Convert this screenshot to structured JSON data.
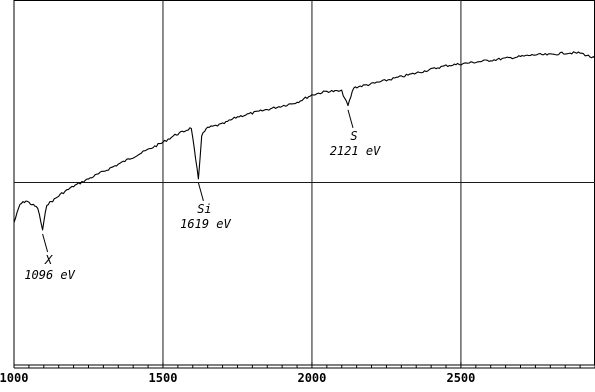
{
  "chart_data": {
    "type": "line",
    "title": "",
    "xlabel": "",
    "ylabel": "",
    "xlim": [
      1000,
      2950
    ],
    "ylim": [
      0,
      100
    ],
    "grid": true,
    "x_ticks": [
      1000,
      1500,
      2000,
      2500
    ],
    "x_tick_labels": [
      "1000",
      "1500",
      "2000",
      "2500"
    ],
    "series": [
      {
        "x": [
          1000,
          1020,
          1040,
          1060,
          1080,
          1096,
          1110,
          1130,
          1160,
          1200,
          1250,
          1300,
          1350,
          1400,
          1450,
          1500,
          1540,
          1570,
          1595,
          1610,
          1619,
          1630,
          1650,
          1700,
          1750,
          1800,
          1850,
          1900,
          1950,
          2000,
          2050,
          2100,
          2121,
          2140,
          2200,
          2250,
          2300,
          2350,
          2400,
          2450,
          2500,
          2550,
          2600,
          2650,
          2700,
          2750,
          2800,
          2850,
          2900,
          2950
        ],
        "y": [
          39,
          44,
          45,
          44,
          43,
          37,
          44,
          45,
          47,
          49,
          51,
          53,
          55,
          57,
          59,
          61,
          63,
          64,
          65,
          56,
          51,
          63,
          65,
          66,
          68,
          69,
          70,
          71,
          72,
          74,
          75,
          75,
          71,
          76,
          77,
          78,
          79,
          80,
          81,
          82,
          82.5,
          83,
          83.5,
          84,
          84.5,
          85,
          85,
          85.5,
          85.5,
          84
        ]
      }
    ],
    "annotations": [
      {
        "label": "X",
        "value": "1096 eV",
        "x": 1096
      },
      {
        "label": "Si",
        "value": "1619 eV",
        "x": 1619
      },
      {
        "label": "S",
        "value": "2121 eV",
        "x": 2121
      }
    ]
  }
}
